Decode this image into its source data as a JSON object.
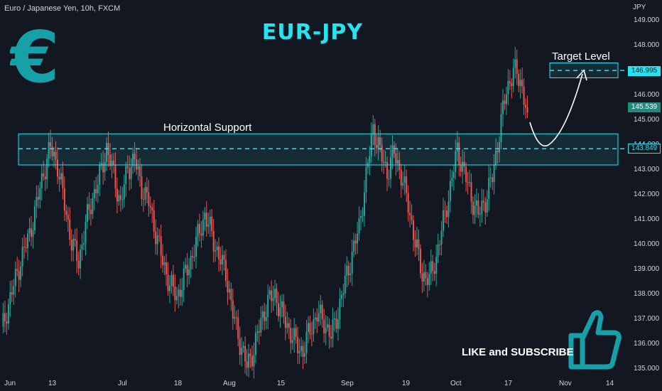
{
  "symbol_line": "Euro / Japanese Yen, 10h, FXCM",
  "title": "EUR-JPY",
  "cta_text": "LIKE and SUBSCRIBE",
  "icons": [
    "euro-icon",
    "thumbs-up-icon"
  ],
  "colors": {
    "background": "#131722",
    "bull": "#26a69a",
    "bear": "#ef5350",
    "zone": "#26e3f0",
    "title": "#26e3f0"
  },
  "chart_data": {
    "type": "candlestick",
    "unit": "JPY",
    "ylim": [
      134.8,
      149.4
    ],
    "yticks": [
      "149.000",
      "148.000",
      "147.000",
      "146.000",
      "145.000",
      "144.000",
      "143.000",
      "142.000",
      "141.000",
      "140.000",
      "139.000",
      "138.000",
      "137.000",
      "136.000",
      "135.000"
    ],
    "xticks": [
      "Jun",
      "13",
      "Jul",
      "18",
      "Aug",
      "15",
      "Sep",
      "19",
      "Oct",
      "17",
      "Nov",
      "14"
    ],
    "series_closes": [
      136.5,
      137.6,
      138.6,
      139.6,
      140.4,
      141.6,
      142.9,
      143.9,
      143.2,
      141.6,
      140.1,
      139.3,
      140.8,
      141.9,
      142.7,
      143.9,
      142.8,
      141.6,
      143.1,
      143.4,
      142.3,
      141.7,
      140.5,
      139.3,
      138.4,
      137.9,
      138.6,
      139.4,
      140.3,
      141.2,
      140.4,
      139.5,
      138.9,
      137.2,
      136.1,
      135.1,
      135.8,
      136.9,
      137.7,
      138.0,
      137.2,
      136.6,
      136.0,
      135.7,
      136.6,
      137.2,
      136.9,
      136.3,
      137.3,
      138.5,
      139.6,
      140.7,
      142.7,
      144.7,
      143.7,
      142.9,
      143.7,
      142.8,
      141.6,
      140.1,
      138.8,
      138.6,
      139.5,
      140.9,
      142.3,
      143.8,
      142.9,
      141.9,
      141.2,
      141.8,
      142.7,
      144.5,
      146.2,
      147.0,
      146.6,
      145.3
    ],
    "current_price": "145.539",
    "support_zone": {
      "label": "Horizontal Support",
      "low": 143.2,
      "high": 144.45,
      "level": "143.849"
    },
    "target_zone": {
      "label": "Target Level",
      "low": 146.7,
      "high": 147.3,
      "level": "146.995"
    },
    "grid": false,
    "legend": "none"
  }
}
